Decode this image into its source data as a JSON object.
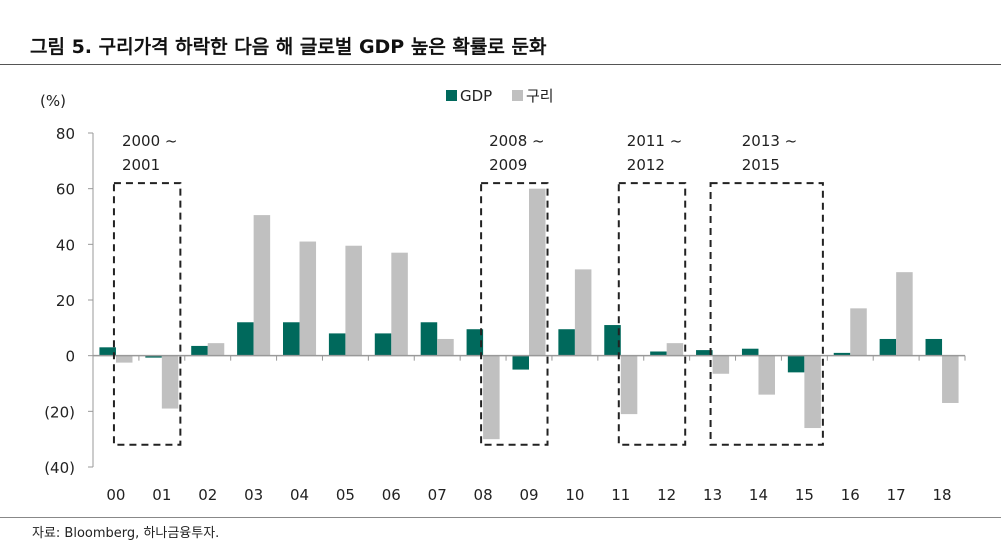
{
  "title": "그림 5. 구리가격 하락한 다음 해 글로벌 GDP 높은 확률로 둔화",
  "source": "자료: Bloomberg, 하나금융투자.",
  "chart_data": {
    "type": "bar",
    "title": "그림 5. 구리가격 하락한 다음 해 글로벌 GDP 높은 확률로 둔화",
    "ylabel": "(%)",
    "ylim": [
      -40,
      80
    ],
    "yticks": [
      80,
      60,
      40,
      20,
      0,
      -20,
      -40
    ],
    "ytick_labels": [
      "80",
      "60",
      "40",
      "20",
      "0",
      "(20)",
      "(40)"
    ],
    "legend_position": "top-center",
    "grid": false,
    "categories": [
      "00",
      "01",
      "02",
      "03",
      "04",
      "05",
      "06",
      "07",
      "08",
      "09",
      "10",
      "11",
      "12",
      "13",
      "14",
      "15",
      "16",
      "17",
      "18"
    ],
    "series": [
      {
        "name": "GDP",
        "color": "#00695c",
        "values": [
          3,
          -0.7,
          3.5,
          12,
          12,
          8,
          8,
          12,
          9.5,
          -5,
          9.5,
          11,
          1.5,
          2,
          2.5,
          -6,
          1,
          6,
          6
        ]
      },
      {
        "name": "구리",
        "color": "#c0c0c0",
        "values": [
          -2.5,
          -19,
          4.5,
          50.5,
          41,
          39.5,
          37,
          6,
          -30,
          60,
          31,
          -21,
          4.5,
          -6.5,
          -14,
          -26,
          17,
          30,
          -17
        ]
      }
    ],
    "annotations": [
      {
        "label_line1": "2000 ~",
        "label_line2": "2001",
        "from": "00",
        "to": "01"
      },
      {
        "label_line1": "2008 ~",
        "label_line2": "2009",
        "from": "08",
        "to": "09"
      },
      {
        "label_line1": "2011 ~",
        "label_line2": "2012",
        "from": "11",
        "to": "12"
      },
      {
        "label_line1": "2013 ~",
        "label_line2": "2015",
        "from": "13",
        "to": "15"
      }
    ]
  }
}
